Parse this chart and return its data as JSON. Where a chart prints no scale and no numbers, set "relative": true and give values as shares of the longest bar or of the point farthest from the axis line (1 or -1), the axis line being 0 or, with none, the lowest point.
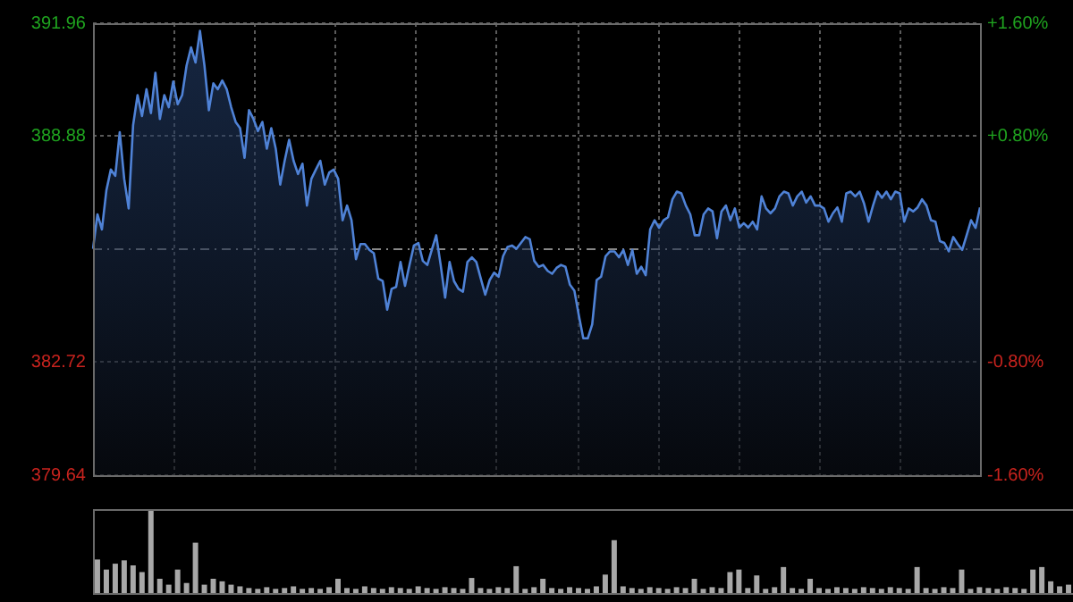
{
  "chart_data": [
    {
      "type": "area",
      "categories": [
        null,
        null,
        null,
        null,
        null,
        null,
        null,
        null,
        null,
        null,
        null,
        null,
        null,
        null,
        null,
        null,
        null,
        null,
        null,
        null,
        null,
        null,
        null,
        null,
        null,
        null,
        null,
        null,
        null,
        null,
        null,
        null,
        null,
        null,
        null,
        null,
        null,
        null,
        null,
        null,
        null,
        null,
        null,
        null,
        null,
        null,
        null,
        null,
        null,
        null,
        null,
        null,
        null,
        null,
        null,
        null,
        null,
        null,
        null,
        null,
        null,
        null,
        null,
        null,
        null,
        null,
        null,
        null,
        null,
        null,
        null,
        null,
        null,
        null,
        null,
        null,
        null,
        null,
        null,
        null,
        null,
        null,
        null,
        null,
        null,
        null,
        null,
        null,
        null,
        null,
        null,
        null,
        null,
        null,
        null,
        null,
        null,
        null,
        null,
        null,
        null,
        null,
        null,
        null,
        null,
        null,
        null,
        null,
        null,
        null,
        null,
        null,
        null,
        null,
        null,
        null,
        null,
        null,
        null,
        null,
        null,
        null,
        null,
        null,
        null,
        null,
        null,
        null,
        null,
        null,
        null,
        null,
        null,
        null,
        null,
        null,
        null,
        null,
        null,
        null,
        null,
        null,
        null,
        null,
        null,
        null,
        null,
        null,
        null,
        null,
        null,
        null,
        null,
        null,
        null,
        null,
        null,
        null,
        null,
        null,
        null,
        null,
        null,
        null,
        null,
        null,
        null,
        null,
        null,
        null,
        null,
        null,
        null,
        null,
        null,
        null,
        null,
        null,
        null,
        null,
        null,
        null,
        null,
        null,
        null,
        null,
        null,
        null,
        null,
        null,
        null,
        null,
        null,
        null,
        null,
        null,
        null,
        null,
        null,
        null
      ],
      "ylim": [
        379.64,
        391.96
      ],
      "yticks": [
        379.64,
        382.72,
        388.88,
        391.96
      ],
      "y2lim": [
        -1.6,
        1.6
      ],
      "y2ticks": [
        {
          "value": -1.6,
          "label": "-1.60%"
        },
        {
          "value": -0.8,
          "label": "-0.80%"
        },
        {
          "value": 0.8,
          "label": "+0.80%"
        },
        {
          "value": 1.6,
          "label": "+1.60%"
        }
      ],
      "grid": true,
      "legend": false,
      "ref_lines": [
        {
          "axis": "y",
          "value": 385.8,
          "line_style": "dashed"
        }
      ],
      "series": [
        {
          "color": "#4f82d6",
          "values": [
            385.81,
            386.75,
            386.34,
            387.4,
            387.97,
            387.8,
            388.99,
            387.72,
            386.91,
            389.18,
            390,
            389.43,
            390.16,
            389.51,
            390.61,
            389.35,
            390,
            389.67,
            390.37,
            389.75,
            390,
            390.81,
            391.3,
            390.89,
            391.75,
            390.81,
            389.59,
            390.32,
            390.16,
            390.4,
            390.16,
            389.67,
            389.27,
            389.1,
            388.29,
            389.59,
            389.35,
            389.02,
            389.27,
            388.54,
            389.1,
            388.54,
            387.56,
            388.21,
            388.78,
            388.21,
            387.85,
            388.13,
            386.99,
            387.72,
            387.97,
            388.21,
            387.56,
            387.89,
            387.97,
            387.72,
            386.59,
            386.99,
            386.59,
            385.53,
            385.94,
            385.94,
            385.78,
            385.69,
            385,
            384.93,
            384.15,
            384.72,
            384.77,
            385.45,
            384.8,
            385.37,
            385.9,
            385.97,
            385.48,
            385.37,
            385.78,
            386.18,
            385.37,
            384.48,
            385.45,
            384.93,
            384.72,
            384.64,
            385.45,
            385.58,
            385.45,
            385,
            384.56,
            384.96,
            385.16,
            385.05,
            385.61,
            385.86,
            385.9,
            385.81,
            385.97,
            386.13,
            386.07,
            385.48,
            385.32,
            385.37,
            385.21,
            385.13,
            385.29,
            385.37,
            385.32,
            384.83,
            384.67,
            383.99,
            383.37,
            383.37,
            383.75,
            384.96,
            385.05,
            385.61,
            385.74,
            385.74,
            385.58,
            385.78,
            385.37,
            385.78,
            385.13,
            385.32,
            385.09,
            386.34,
            386.59,
            386.38,
            386.59,
            386.67,
            387.16,
            387.37,
            387.32,
            386.99,
            386.75,
            386.18,
            386.18,
            386.75,
            386.91,
            386.83,
            386.1,
            386.83,
            386.99,
            386.59,
            386.91,
            386.39,
            386.51,
            386.39,
            386.55,
            386.34,
            387.24,
            386.91,
            386.78,
            386.91,
            387.24,
            387.37,
            387.32,
            386.99,
            387.24,
            387.37,
            387.07,
            387.24,
            386.99,
            386.99,
            386.91,
            386.55,
            386.78,
            386.94,
            386.55,
            387.32,
            387.37,
            387.24,
            387.37,
            387.04,
            386.55,
            386.99,
            387.37,
            387.2,
            387.37,
            387.16,
            387.37,
            387.32,
            386.55,
            386.91,
            386.83,
            386.94,
            387.16,
            386.99,
            386.59,
            386.55,
            386.02,
            385.97,
            385.74,
            386.13,
            385.94,
            385.78,
            386.18,
            386.59,
            386.38,
            386.94
          ]
        }
      ]
    },
    {
      "type": "bar",
      "relative": true,
      "legend": false,
      "categories": [
        null,
        null,
        null,
        null,
        null,
        null,
        null,
        null,
        null,
        null,
        null,
        null,
        null,
        null,
        null,
        null,
        null,
        null,
        null,
        null,
        null,
        null,
        null,
        null,
        null,
        null,
        null,
        null,
        null,
        null,
        null,
        null,
        null,
        null,
        null,
        null,
        null,
        null,
        null,
        null,
        null,
        null,
        null,
        null,
        null,
        null,
        null,
        null,
        null,
        null,
        null,
        null,
        null,
        null,
        null,
        null,
        null,
        null,
        null,
        null,
        null,
        null,
        null,
        null,
        null,
        null,
        null,
        null,
        null,
        null,
        null,
        null,
        null,
        null,
        null,
        null,
        null,
        null,
        null,
        null,
        null,
        null,
        null,
        null,
        null,
        null,
        null,
        null,
        null,
        null,
        null,
        null,
        null,
        null,
        null,
        null,
        null,
        null,
        null,
        null,
        null,
        null,
        null,
        null,
        null,
        null,
        null,
        null,
        null,
        null
      ],
      "series": [
        {
          "color": "#a8a8a8",
          "values": [
            0.4,
            0.28,
            0.35,
            0.39,
            0.33,
            0.25,
            1,
            0.17,
            0.1,
            0.28,
            0.12,
            0.6,
            0.1,
            0.17,
            0.14,
            0.1,
            0.08,
            0.06,
            0.05,
            0.07,
            0.05,
            0.06,
            0.08,
            0.05,
            0.06,
            0.05,
            0.07,
            0.17,
            0.06,
            0.05,
            0.08,
            0.06,
            0.05,
            0.07,
            0.06,
            0.05,
            0.08,
            0.06,
            0.05,
            0.07,
            0.06,
            0.05,
            0.18,
            0.06,
            0.05,
            0.07,
            0.06,
            0.32,
            0.05,
            0.07,
            0.17,
            0.06,
            0.05,
            0.07,
            0.06,
            0.05,
            0.08,
            0.22,
            0.63,
            0.08,
            0.06,
            0.05,
            0.07,
            0.06,
            0.05,
            0.07,
            0.06,
            0.17,
            0.05,
            0.07,
            0.06,
            0.25,
            0.28,
            0.06,
            0.21,
            0.05,
            0.07,
            0.31,
            0.06,
            0.05,
            0.17,
            0.06,
            0.05,
            0.07,
            0.06,
            0.05,
            0.07,
            0.06,
            0.05,
            0.07,
            0.06,
            0.05,
            0.31,
            0.06,
            0.05,
            0.07,
            0.06,
            0.28,
            0.05,
            0.07,
            0.06,
            0.05,
            0.07,
            0.06,
            0.05,
            0.28,
            0.31,
            0.14,
            0.08,
            0.1
          ]
        }
      ]
    }
  ]
}
